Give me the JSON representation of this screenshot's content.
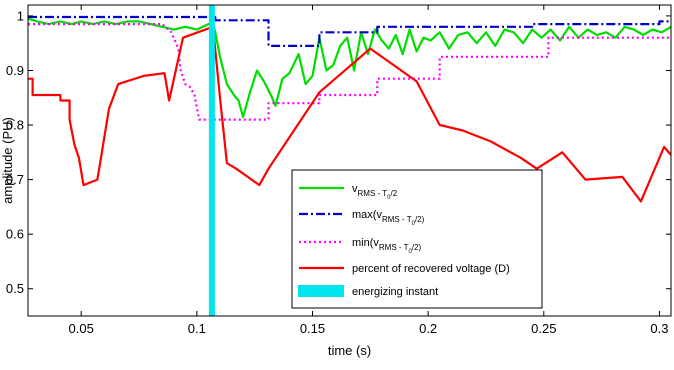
{
  "chart_data": {
    "type": "line",
    "xlabel": "time (s)",
    "ylabel": "amplitude (PU)",
    "xlim": [
      0.027,
      0.305
    ],
    "ylim": [
      0.45,
      1.02
    ],
    "x_ticks": [
      0.05,
      0.1,
      0.15,
      0.2,
      0.25,
      0.3
    ],
    "x_tick_labels": [
      "0.05",
      "0.1",
      "0.15",
      "0.2",
      "0.25",
      "0.3"
    ],
    "y_ticks": [
      0.5,
      0.6,
      0.7,
      0.8,
      0.9,
      1.0
    ],
    "y_tick_labels": [
      "0.5",
      "0.6",
      "0.7",
      "0.8",
      "0.9",
      "1"
    ],
    "grid": false,
    "legend_position": "bottom-center",
    "series": [
      {
        "key": "rms",
        "legend": {
          "base": "v",
          "sub": "RMS - T",
          "subsub": "0",
          "tail": "/2",
          "pre": ""
        },
        "color": "#00dd00",
        "style": "solid",
        "x": [
          0.027,
          0.031,
          0.036,
          0.041,
          0.046,
          0.05,
          0.055,
          0.06,
          0.065,
          0.07,
          0.075,
          0.08,
          0.085,
          0.09,
          0.095,
          0.1,
          0.105,
          0.107,
          0.108,
          0.11,
          0.113,
          0.116,
          0.118,
          0.12,
          0.123,
          0.126,
          0.129,
          0.132,
          0.134,
          0.137,
          0.14,
          0.144,
          0.147,
          0.15,
          0.153,
          0.156,
          0.159,
          0.162,
          0.165,
          0.168,
          0.171,
          0.174,
          0.177,
          0.18,
          0.183,
          0.186,
          0.189,
          0.192,
          0.195,
          0.198,
          0.201,
          0.205,
          0.209,
          0.213,
          0.217,
          0.221,
          0.225,
          0.229,
          0.233,
          0.237,
          0.241,
          0.245,
          0.249,
          0.253,
          0.257,
          0.261,
          0.265,
          0.269,
          0.273,
          0.277,
          0.281,
          0.285,
          0.289,
          0.293,
          0.297,
          0.301,
          0.305
        ],
        "y": [
          0.995,
          0.99,
          0.985,
          0.99,
          0.985,
          0.99,
          0.985,
          0.99,
          0.985,
          0.99,
          0.99,
          0.985,
          0.98,
          0.975,
          0.98,
          0.975,
          0.985,
          0.985,
          0.97,
          0.925,
          0.875,
          0.855,
          0.845,
          0.815,
          0.86,
          0.9,
          0.88,
          0.855,
          0.835,
          0.885,
          0.895,
          0.93,
          0.875,
          0.89,
          0.96,
          0.9,
          0.91,
          0.945,
          0.96,
          0.9,
          0.97,
          0.93,
          0.975,
          0.955,
          0.94,
          0.965,
          0.93,
          0.975,
          0.935,
          0.96,
          0.955,
          0.97,
          0.94,
          0.965,
          0.97,
          0.95,
          0.97,
          0.945,
          0.975,
          0.97,
          0.95,
          0.975,
          0.96,
          0.975,
          0.955,
          0.98,
          0.96,
          0.975,
          0.965,
          0.97,
          0.96,
          0.98,
          0.975,
          0.965,
          0.975,
          0.97,
          0.98
        ]
      },
      {
        "key": "max",
        "legend": {
          "base": "max(v",
          "sub": "RMS - T",
          "subsub": "0",
          "tail": "/2)",
          "pre": ""
        },
        "color": "#0000cc",
        "style": "dashdot",
        "x": [
          0.027,
          0.108,
          0.108,
          0.131,
          0.131,
          0.153,
          0.153,
          0.178,
          0.178,
          0.245,
          0.245,
          0.3,
          0.3,
          0.305
        ],
        "y": [
          0.998,
          0.998,
          0.992,
          0.992,
          0.945,
          0.945,
          0.97,
          0.97,
          0.98,
          0.98,
          0.985,
          0.985,
          0.99,
          0.99
        ]
      },
      {
        "key": "min",
        "legend": {
          "base": "min(v",
          "sub": "RMS - T",
          "subsub": "0",
          "tail": "/2)",
          "pre": ""
        },
        "color": "#ff00ff",
        "style": "dotted",
        "x": [
          0.027,
          0.085,
          0.089,
          0.092,
          0.093,
          0.095,
          0.097,
          0.099,
          0.101,
          0.107,
          0.107,
          0.131,
          0.131,
          0.153,
          0.153,
          0.178,
          0.178,
          0.205,
          0.205,
          0.252,
          0.252,
          0.305
        ],
        "y": [
          0.985,
          0.985,
          0.97,
          0.94,
          0.9,
          0.875,
          0.87,
          0.855,
          0.81,
          0.81,
          0.81,
          0.81,
          0.84,
          0.84,
          0.855,
          0.855,
          0.885,
          0.885,
          0.925,
          0.925,
          0.96,
          0.96
        ]
      },
      {
        "key": "pct",
        "legend": {
          "base": "percent of recovered voltage (D)",
          "sub": "",
          "subsub": "",
          "tail": "",
          "pre": ""
        },
        "color": "#ff0000",
        "style": "solid",
        "x": [
          0.027,
          0.029,
          0.029,
          0.041,
          0.041,
          0.045,
          0.045,
          0.047,
          0.049,
          0.051,
          0.051,
          0.057,
          0.057,
          0.062,
          0.062,
          0.066,
          0.066,
          0.077,
          0.077,
          0.086,
          0.086,
          0.088,
          0.088,
          0.094,
          0.094,
          0.107,
          0.107,
          0.11,
          0.11,
          0.113,
          0.113,
          0.117,
          0.117,
          0.127,
          0.127,
          0.131,
          0.131,
          0.153,
          0.153,
          0.175,
          0.175,
          0.195,
          0.195,
          0.205,
          0.205,
          0.215,
          0.215,
          0.227,
          0.227,
          0.24,
          0.24,
          0.247,
          0.247,
          0.258,
          0.258,
          0.268,
          0.268,
          0.284,
          0.284,
          0.292,
          0.292,
          0.302,
          0.302,
          0.305
        ],
        "y": [
          0.885,
          0.885,
          0.855,
          0.855,
          0.845,
          0.845,
          0.81,
          0.765,
          0.74,
          0.69,
          0.69,
          0.7,
          0.7,
          0.83,
          0.83,
          0.875,
          0.875,
          0.89,
          0.89,
          0.895,
          0.895,
          0.845,
          0.845,
          0.96,
          0.96,
          0.98,
          0.98,
          0.85,
          0.85,
          0.73,
          0.73,
          0.72,
          0.72,
          0.69,
          0.69,
          0.72,
          0.72,
          0.86,
          0.86,
          0.94,
          0.94,
          0.88,
          0.88,
          0.8,
          0.8,
          0.79,
          0.79,
          0.77,
          0.77,
          0.74,
          0.74,
          0.72,
          0.72,
          0.75,
          0.75,
          0.7,
          0.7,
          0.705,
          0.705,
          0.66,
          0.66,
          0.76,
          0.76,
          0.745
        ]
      }
    ],
    "annotations": [
      {
        "key": "energize",
        "legend": {
          "base": "energizing instant",
          "sub": "",
          "subsub": "",
          "tail": "",
          "pre": ""
        },
        "type": "vertical_band",
        "x": 0.1065,
        "color": "#00e5ee"
      }
    ]
  }
}
